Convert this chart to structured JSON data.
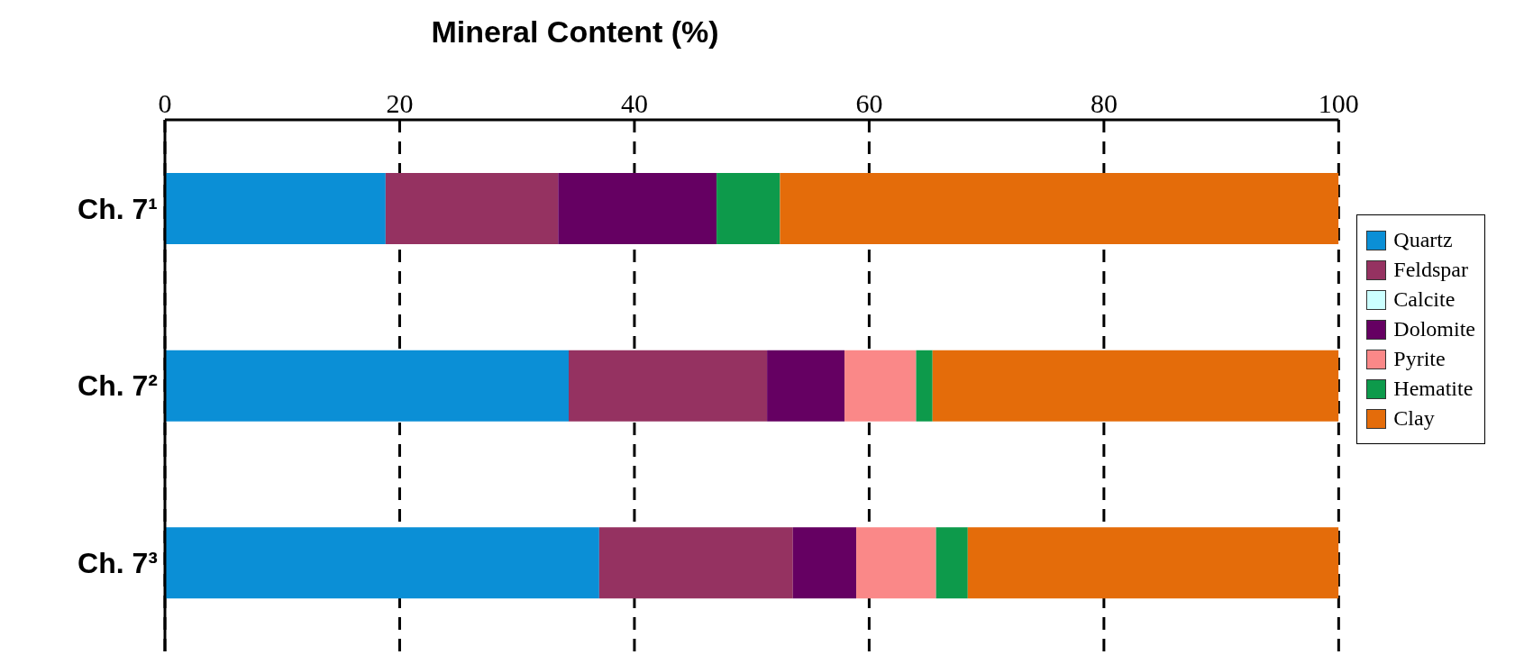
{
  "chart_data": {
    "type": "bar",
    "orientation": "horizontal",
    "stacked": true,
    "title": "Mineral Content (%)",
    "categories": [
      "Ch. 7¹",
      "Ch. 7²",
      "Ch. 7³"
    ],
    "series": [
      {
        "name": "Quartz",
        "color": "#0b8fd6",
        "values": [
          18.8,
          34.4,
          37.0
        ]
      },
      {
        "name": "Feldspar",
        "color": "#953261",
        "values": [
          14.7,
          16.9,
          16.5
        ]
      },
      {
        "name": "Calcite",
        "color": "#ccffff",
        "values": [
          0,
          0,
          0
        ]
      },
      {
        "name": "Dolomite",
        "color": "#650062",
        "values": [
          13.5,
          6.6,
          5.4
        ]
      },
      {
        "name": "Pyrite",
        "color": "#fa8888",
        "values": [
          0,
          6.1,
          6.8
        ]
      },
      {
        "name": "Hematite",
        "color": "#0d9a4b",
        "values": [
          5.4,
          1.4,
          2.7
        ]
      },
      {
        "name": "Clay",
        "color": "#e46c0a",
        "values": [
          47.6,
          34.6,
          31.6
        ]
      }
    ],
    "xlim": [
      0,
      100
    ],
    "xticks": [
      0,
      20,
      40,
      60,
      80,
      100
    ],
    "grid": "x",
    "legend": "right"
  }
}
